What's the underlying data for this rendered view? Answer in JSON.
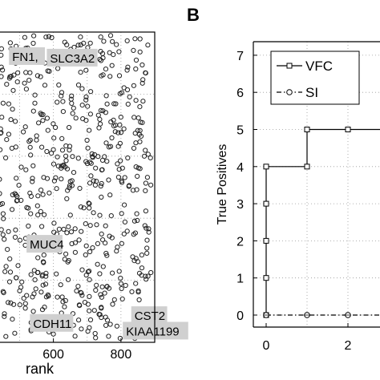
{
  "chart_data": [
    {
      "type": "scatter",
      "panel": "A",
      "xlabel": "rank",
      "ylabel": "",
      "xlim": [
        430,
        900
      ],
      "xticks": [
        600,
        800
      ],
      "grid": true,
      "note": "points are a dense random-looking scatter of hollow circles; positions approximate",
      "annotations": [
        {
          "label": "FN1,",
          "x": 478,
          "y": 0.92
        },
        {
          "label": "SLC3A2",
          "x": 590,
          "y": 0.915
        },
        {
          "label": "MUC4",
          "x": 530,
          "y": 0.315
        },
        {
          "label": "CST2",
          "x": 840,
          "y": 0.085
        },
        {
          "label": "CDH11",
          "x": 540,
          "y": 0.06
        },
        {
          "label": "KIAA1199",
          "x": 815,
          "y": 0.035
        }
      ]
    },
    {
      "type": "line",
      "panel": "B",
      "title": "",
      "xlabel": "",
      "ylabel": "True Positives",
      "xlim": [
        -0.2,
        3.1
      ],
      "ylim": [
        -0.3,
        7.3
      ],
      "xticks": [
        0,
        2
      ],
      "yticks": [
        0,
        1,
        2,
        3,
        4,
        5,
        6,
        7
      ],
      "grid": true,
      "legend_position": "top-left",
      "series": [
        {
          "name": "VFC",
          "marker": "square",
          "linestyle": "solid",
          "x": [
            0,
            0,
            0,
            0,
            0,
            1,
            1,
            2,
            3.1
          ],
          "y": [
            0,
            1,
            2,
            3,
            4,
            4,
            5,
            5,
            5
          ]
        },
        {
          "name": "SI",
          "marker": "circle",
          "linestyle": "dash-dot",
          "x": [
            0,
            1,
            2,
            3.1
          ],
          "y": [
            0,
            0,
            0,
            0
          ]
        }
      ]
    }
  ],
  "panel_labels": {
    "b": "B"
  },
  "tick_labels": {
    "a_x": [
      "600",
      "800"
    ],
    "b_x": [
      "0",
      "2"
    ],
    "b_y": [
      "0",
      "1",
      "2",
      "3",
      "4",
      "5",
      "6",
      "7"
    ]
  },
  "colors": {
    "axis": "#000000",
    "grid": "#999999",
    "label_box": "#d0d0d0",
    "marker": "#222222"
  }
}
